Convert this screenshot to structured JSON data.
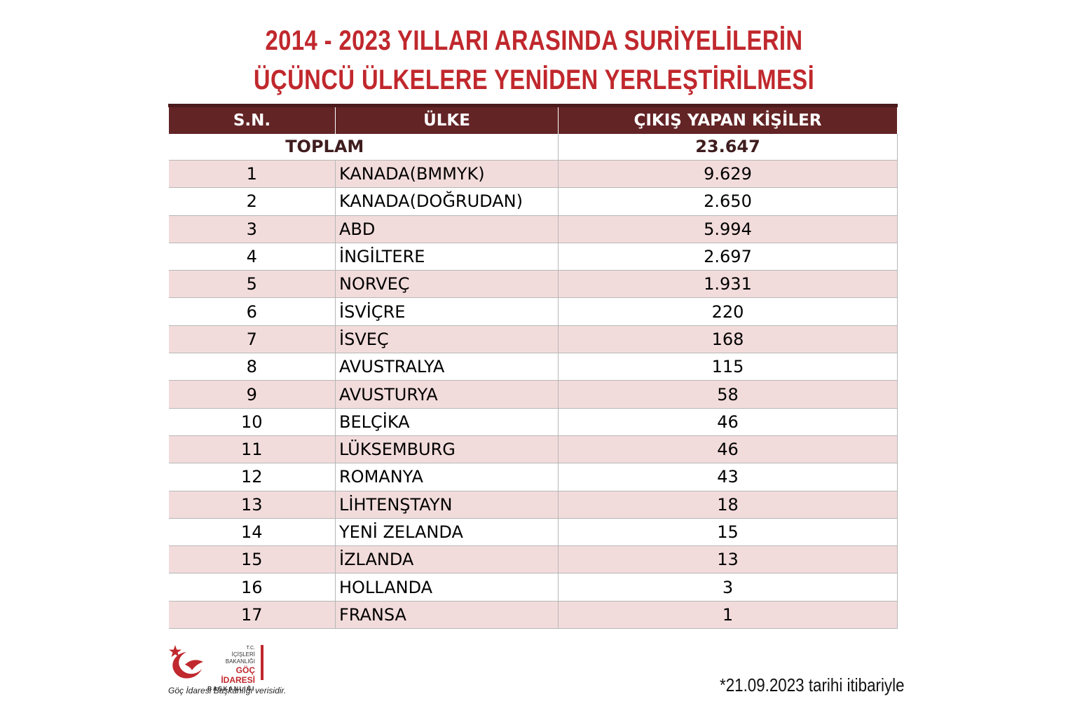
{
  "title_line1": "2014 - 2023 YILLARI ARASINDA SURİYELİLERİN",
  "title_line2": "ÜÇÜNCÜ ÜLKELERE YENİDEN YERLEŞTİRİLMESİ",
  "chart_data": {
    "type": "table",
    "title": "2014 - 2023 YILLARI ARASINDA SURİYELİLERİN ÜÇÜNCÜ ÜLKELERE YENİDEN YERLEŞTİRİLMESİ",
    "columns": [
      "S.N.",
      "ÜLKE",
      "ÇIKIŞ YAPAN KİŞİLER"
    ],
    "total_label": "TOPLAM",
    "total_value": "23.647",
    "rows": [
      {
        "sn": "1",
        "country": "KANADA(BMMYK)",
        "value": "9.629"
      },
      {
        "sn": "2",
        "country": "KANADA(DOĞRUDAN)",
        "value": "2.650"
      },
      {
        "sn": "3",
        "country": "ABD",
        "value": "5.994"
      },
      {
        "sn": "4",
        "country": "İNGİLTERE",
        "value": "2.697"
      },
      {
        "sn": "5",
        "country": "NORVEÇ",
        "value": "1.931"
      },
      {
        "sn": "6",
        "country": "İSVİÇRE",
        "value": "220"
      },
      {
        "sn": "7",
        "country": "İSVEÇ",
        "value": "168"
      },
      {
        "sn": "8",
        "country": "AVUSTRALYA",
        "value": "115"
      },
      {
        "sn": "9",
        "country": "AVUSTURYA",
        "value": "58"
      },
      {
        "sn": "10",
        "country": "BELÇİKA",
        "value": "46"
      },
      {
        "sn": "11",
        "country": "LÜKSEMBURG",
        "value": "46"
      },
      {
        "sn": "12",
        "country": "ROMANYA",
        "value": "43"
      },
      {
        "sn": "13",
        "country": "LİHTENŞTAYN",
        "value": "18"
      },
      {
        "sn": "14",
        "country": "YENİ ZELANDA",
        "value": "15"
      },
      {
        "sn": "15",
        "country": "İZLANDA",
        "value": "13"
      },
      {
        "sn": "16",
        "country": "HOLLANDA",
        "value": "3"
      },
      {
        "sn": "17",
        "country": "FRANSA",
        "value": "1"
      }
    ]
  },
  "logo": {
    "line1": "T.C.",
    "line2": "İÇİŞLERİ BAKANLIĞI",
    "line3": "GÖÇ İDARESİ",
    "line4": "BAŞKANLIĞI",
    "red": "#c0282d"
  },
  "source_note": "Göç İdaresi Başkanlığı verisidir.",
  "date_note": "*21.09.2023 tarihi itibariyle",
  "colors": {
    "title": "#c0282d",
    "header_bg": "#632426",
    "row_stripe": "#f2dcdb"
  }
}
